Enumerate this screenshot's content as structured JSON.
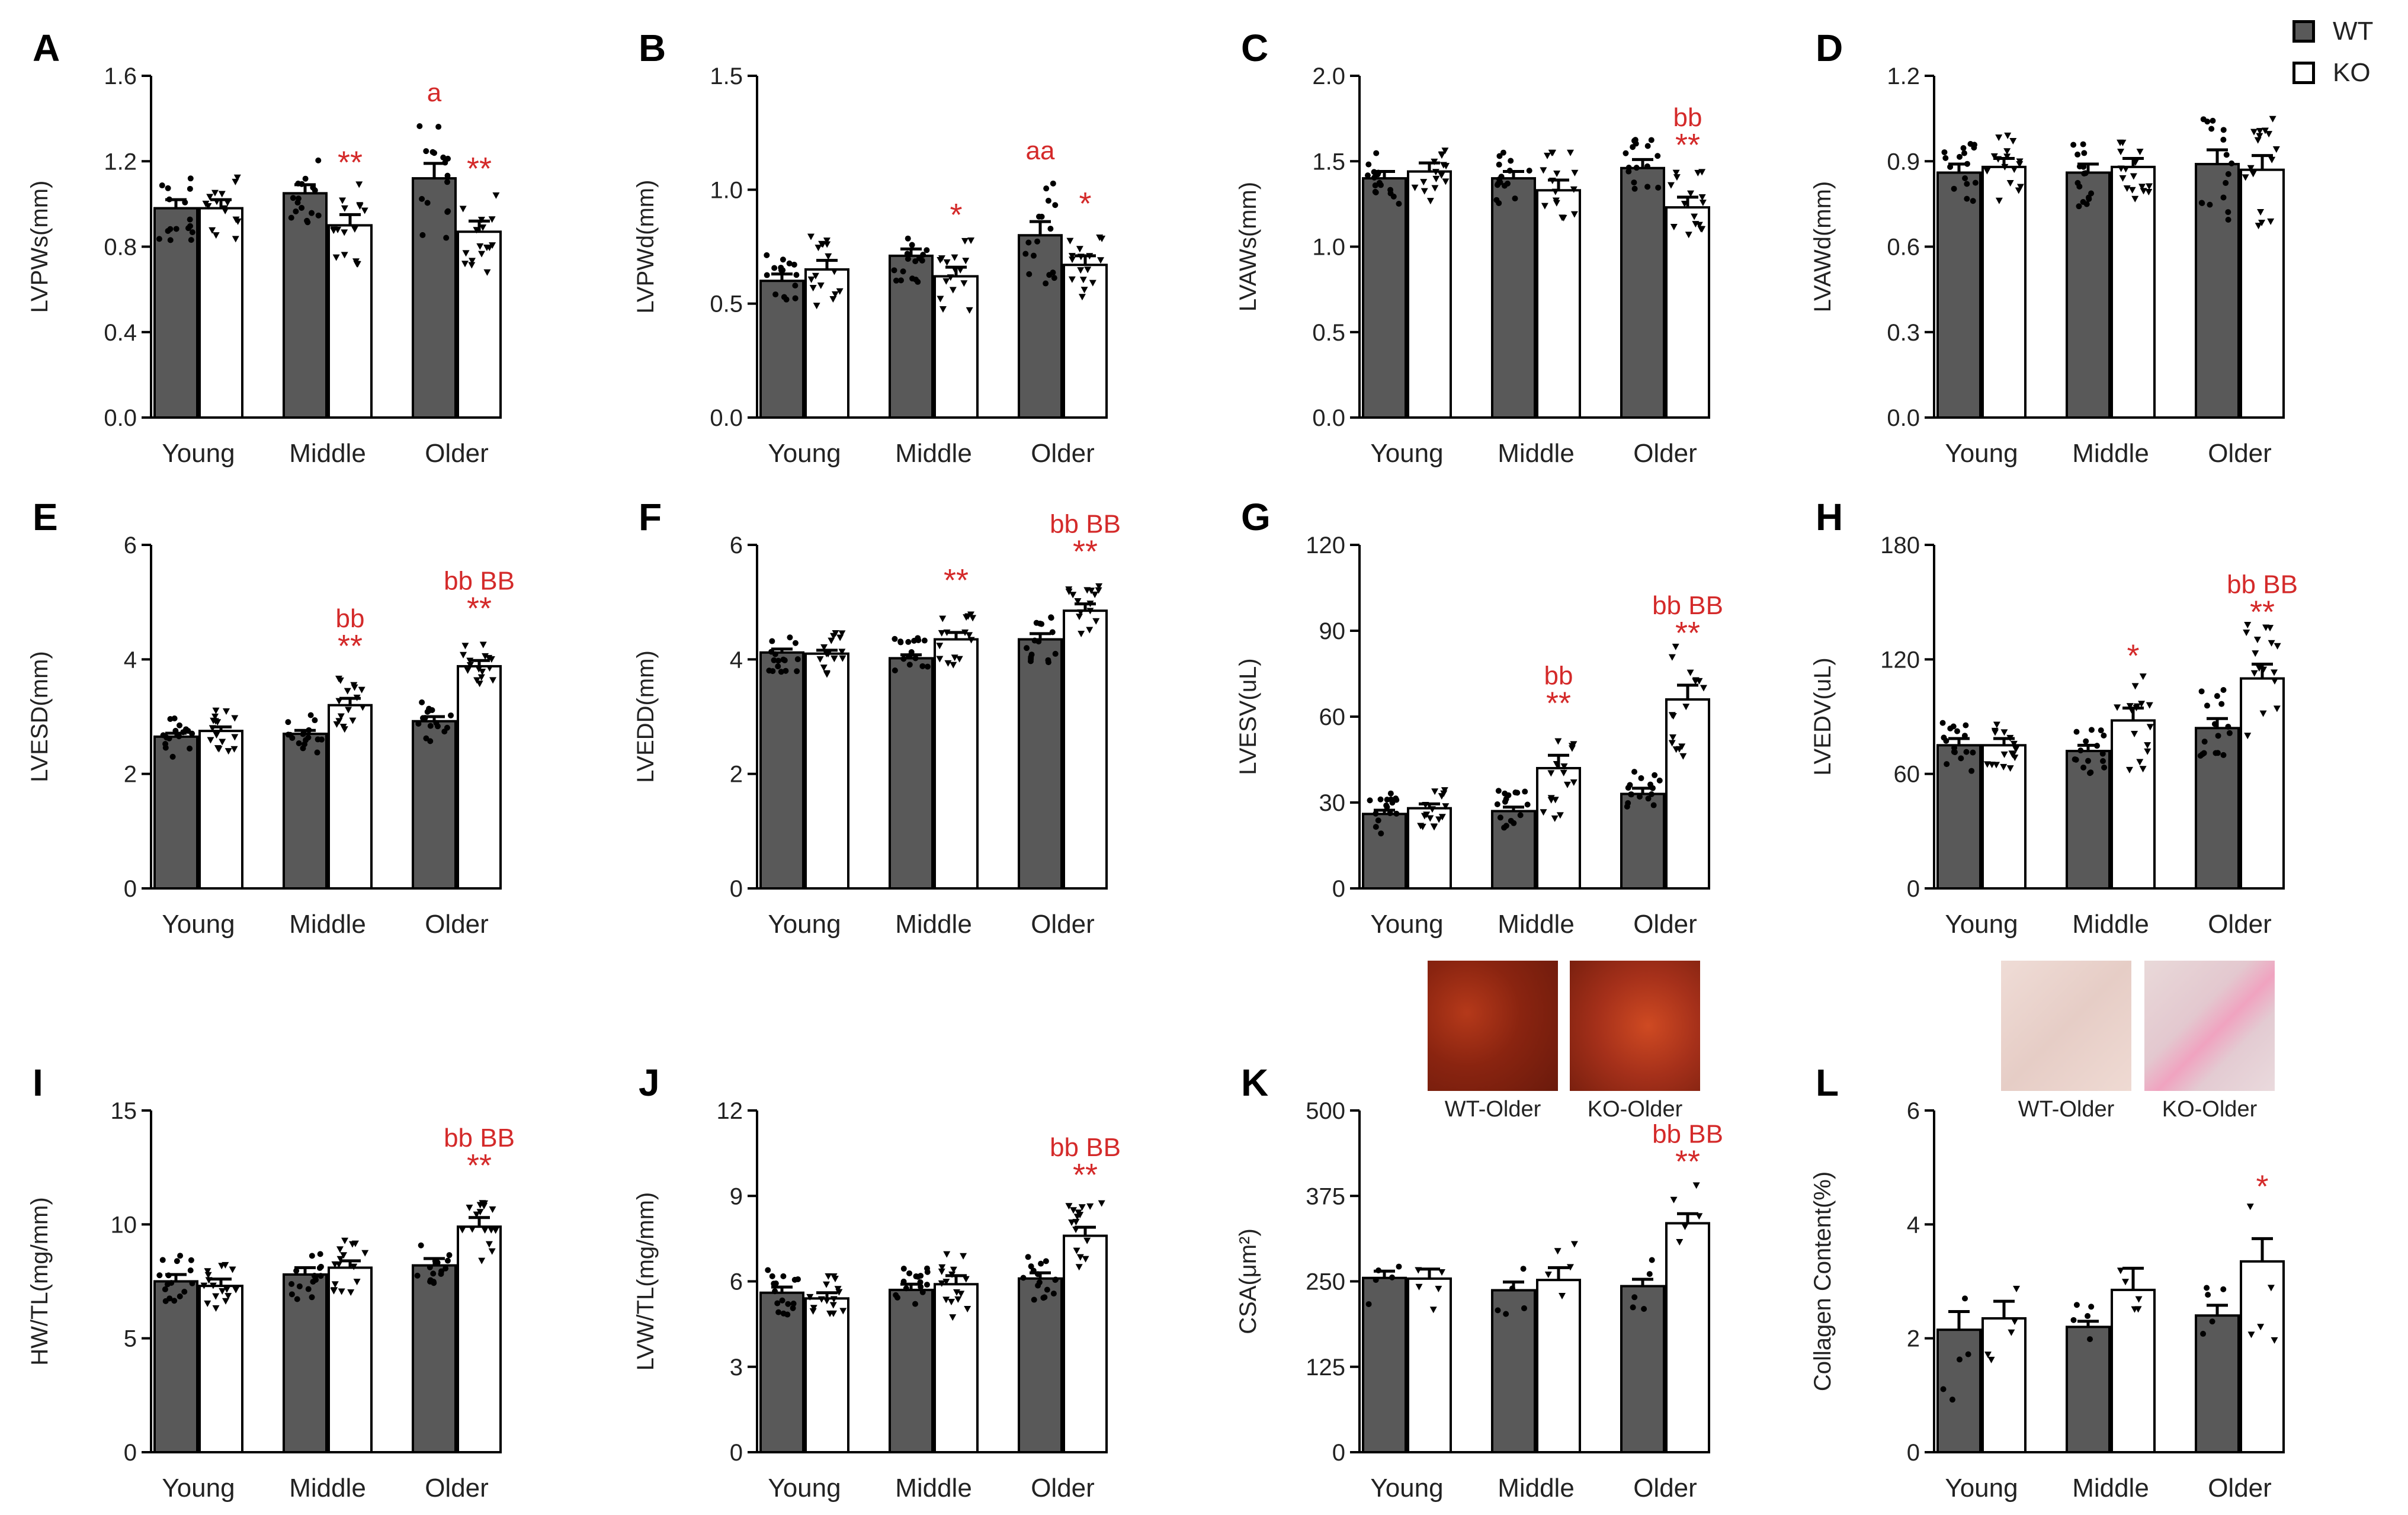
{
  "legend": [
    {
      "label": "WT",
      "color": "#595959"
    },
    {
      "label": "KO",
      "color": "#ffffff"
    }
  ],
  "colors": {
    "wt": "#595959",
    "ko": "#ffffff",
    "significance": "#d42a2a",
    "axis": "#000000"
  },
  "groups": [
    "Young",
    "Middle",
    "Older"
  ],
  "chart_data": [
    {
      "type": "bar",
      "panel": "A",
      "ylabel": "LVPWs(mm)",
      "ylim": [
        0,
        1.6
      ],
      "ticks": [
        "0.0",
        "0.4",
        "0.8",
        "1.2",
        "1.6"
      ],
      "categories": [
        "Young",
        "Middle",
        "Older"
      ],
      "series": [
        {
          "name": "WT",
          "values": [
            0.98,
            1.05,
            1.12
          ],
          "sem": [
            0.04,
            0.04,
            0.07
          ]
        },
        {
          "name": "KO",
          "values": [
            0.98,
            0.9,
            0.87
          ],
          "sem": [
            0.04,
            0.05,
            0.05
          ]
        }
      ],
      "sig": [
        {
          "group": 2,
          "series": 0,
          "line1": "a",
          "line2": ""
        },
        {
          "group": 1,
          "series": 1,
          "line1": "",
          "line2": "**"
        },
        {
          "group": 2,
          "series": 1,
          "line1": "",
          "line2": "**"
        }
      ]
    },
    {
      "type": "bar",
      "panel": "B",
      "ylabel": "LVPWd(mm)",
      "ylim": [
        0,
        1.5
      ],
      "ticks": [
        "0.0",
        "0.5",
        "1.0",
        "1.5"
      ],
      "categories": [
        "Young",
        "Middle",
        "Older"
      ],
      "series": [
        {
          "name": "WT",
          "values": [
            0.6,
            0.71,
            0.8
          ],
          "sem": [
            0.03,
            0.03,
            0.06
          ]
        },
        {
          "name": "KO",
          "values": [
            0.65,
            0.62,
            0.67
          ],
          "sem": [
            0.04,
            0.04,
            0.04
          ]
        }
      ],
      "sig": [
        {
          "group": 2,
          "series": 0,
          "line1": "aa",
          "line2": ""
        },
        {
          "group": 1,
          "series": 1,
          "line1": "",
          "line2": "*"
        },
        {
          "group": 2,
          "series": 1,
          "line1": "",
          "line2": "*"
        }
      ]
    },
    {
      "type": "bar",
      "panel": "C",
      "ylabel": "LVAWs(mm)",
      "ylim": [
        0,
        2.0
      ],
      "ticks": [
        "0.0",
        "0.5",
        "1.0",
        "1.5",
        "2.0"
      ],
      "categories": [
        "Young",
        "Middle",
        "Older"
      ],
      "series": [
        {
          "name": "WT",
          "values": [
            1.4,
            1.4,
            1.46
          ],
          "sem": [
            0.04,
            0.04,
            0.05
          ]
        },
        {
          "name": "KO",
          "values": [
            1.44,
            1.33,
            1.23
          ],
          "sem": [
            0.05,
            0.06,
            0.06
          ]
        }
      ],
      "sig": [
        {
          "group": 2,
          "series": 1,
          "line1": "bb",
          "line2": "**"
        }
      ]
    },
    {
      "type": "bar",
      "panel": "D",
      "ylabel": "LVAWd(mm)",
      "ylim": [
        0,
        1.2
      ],
      "ticks": [
        "0.0",
        "0.3",
        "0.6",
        "0.9",
        "1.2"
      ],
      "categories": [
        "Young",
        "Middle",
        "Older"
      ],
      "series": [
        {
          "name": "WT",
          "values": [
            0.86,
            0.86,
            0.89
          ],
          "sem": [
            0.03,
            0.03,
            0.05
          ]
        },
        {
          "name": "KO",
          "values": [
            0.88,
            0.88,
            0.87
          ],
          "sem": [
            0.03,
            0.03,
            0.05
          ]
        }
      ],
      "sig": []
    },
    {
      "type": "bar",
      "panel": "E",
      "ylabel": "LVESD(mm)",
      "ylim": [
        0,
        6
      ],
      "ticks": [
        "0",
        "2",
        "4",
        "6"
      ],
      "categories": [
        "Young",
        "Middle",
        "Older"
      ],
      "series": [
        {
          "name": "WT",
          "values": [
            2.65,
            2.7,
            2.92
          ],
          "sem": [
            0.06,
            0.06,
            0.08
          ]
        },
        {
          "name": "KO",
          "values": [
            2.75,
            3.2,
            3.88
          ],
          "sem": [
            0.07,
            0.12,
            0.1
          ]
        }
      ],
      "sig": [
        {
          "group": 1,
          "series": 1,
          "line1": "bb",
          "line2": "**"
        },
        {
          "group": 2,
          "series": 1,
          "line1": "bb BB",
          "line2": "**"
        }
      ]
    },
    {
      "type": "bar",
      "panel": "F",
      "ylabel": "LVEDD(mm)",
      "ylim": [
        0,
        6
      ],
      "ticks": [
        "0",
        "2",
        "4",
        "6"
      ],
      "categories": [
        "Young",
        "Middle",
        "Older"
      ],
      "series": [
        {
          "name": "WT",
          "values": [
            4.12,
            4.02,
            4.35
          ],
          "sem": [
            0.06,
            0.06,
            0.1
          ]
        },
        {
          "name": "KO",
          "values": [
            4.1,
            4.35,
            4.85
          ],
          "sem": [
            0.06,
            0.12,
            0.12
          ]
        }
      ],
      "sig": [
        {
          "group": 1,
          "series": 1,
          "line1": "",
          "line2": "**"
        },
        {
          "group": 2,
          "series": 1,
          "line1": "bb BB",
          "line2": "**"
        }
      ]
    },
    {
      "type": "bar",
      "panel": "G",
      "ylabel": "LVESV(uL)",
      "ylim": [
        0,
        120
      ],
      "ticks": [
        "0",
        "30",
        "60",
        "90",
        "120"
      ],
      "categories": [
        "Young",
        "Middle",
        "Older"
      ],
      "series": [
        {
          "name": "WT",
          "values": [
            26,
            27,
            33
          ],
          "sem": [
            1.3,
            1.4,
            2.0
          ]
        },
        {
          "name": "KO",
          "values": [
            28,
            42,
            66
          ],
          "sem": [
            1.5,
            4.5,
            5.0
          ]
        }
      ],
      "sig": [
        {
          "group": 1,
          "series": 1,
          "line1": "bb",
          "line2": "**"
        },
        {
          "group": 2,
          "series": 1,
          "line1": "bb BB",
          "line2": "**"
        }
      ]
    },
    {
      "type": "bar",
      "panel": "H",
      "ylabel": "LVEDV(uL)",
      "ylim": [
        0,
        180
      ],
      "ticks": [
        "0",
        "60",
        "120",
        "180"
      ],
      "categories": [
        "Young",
        "Middle",
        "Older"
      ],
      "series": [
        {
          "name": "WT",
          "values": [
            75,
            72,
            84
          ],
          "sem": [
            3.5,
            3.0,
            5.0
          ]
        },
        {
          "name": "KO",
          "values": [
            75,
            88,
            110
          ],
          "sem": [
            3.5,
            6.5,
            7.5
          ]
        }
      ],
      "sig": [
        {
          "group": 1,
          "series": 1,
          "line1": "",
          "line2": "*"
        },
        {
          "group": 2,
          "series": 1,
          "line1": "bb BB",
          "line2": "**"
        }
      ]
    },
    {
      "type": "bar",
      "panel": "I",
      "ylabel": "HW/TL(mg/mm)",
      "ylim": [
        0,
        15
      ],
      "ticks": [
        "0",
        "5",
        "10",
        "15"
      ],
      "categories": [
        "Young",
        "Middle",
        "Older"
      ],
      "series": [
        {
          "name": "WT",
          "values": [
            7.5,
            7.8,
            8.2
          ],
          "sem": [
            0.3,
            0.3,
            0.3
          ]
        },
        {
          "name": "KO",
          "values": [
            7.3,
            8.1,
            9.9
          ],
          "sem": [
            0.3,
            0.3,
            0.4
          ]
        }
      ],
      "sig": [
        {
          "group": 2,
          "series": 1,
          "line1": "bb BB",
          "line2": "**"
        }
      ]
    },
    {
      "type": "bar",
      "panel": "J",
      "ylabel": "LVW/TL(mg/mm)",
      "ylim": [
        0,
        12
      ],
      "ticks": [
        "0",
        "3",
        "6",
        "9",
        "12"
      ],
      "categories": [
        "Young",
        "Middle",
        "Older"
      ],
      "series": [
        {
          "name": "WT",
          "values": [
            5.6,
            5.7,
            6.1
          ],
          "sem": [
            0.2,
            0.2,
            0.2
          ]
        },
        {
          "name": "KO",
          "values": [
            5.4,
            5.9,
            7.6
          ],
          "sem": [
            0.2,
            0.3,
            0.3
          ]
        }
      ],
      "sig": [
        {
          "group": 2,
          "series": 1,
          "line1": "bb BB",
          "line2": "**"
        }
      ]
    },
    {
      "type": "bar",
      "panel": "K",
      "ylabel": "CSA(μm²)",
      "ylim": [
        0,
        500
      ],
      "ticks": [
        "0",
        "125",
        "250",
        "375",
        "500"
      ],
      "categories": [
        "Young",
        "Middle",
        "Older"
      ],
      "series": [
        {
          "name": "WT",
          "values": [
            255,
            237,
            243
          ],
          "sem": [
            10,
            12,
            10
          ]
        },
        {
          "name": "KO",
          "values": [
            254,
            252,
            335
          ],
          "sem": [
            14,
            18,
            14
          ]
        }
      ],
      "sig": [
        {
          "group": 2,
          "series": 1,
          "line1": "bb BB",
          "line2": "**"
        }
      ],
      "images": [
        {
          "caption": "WT-Older"
        },
        {
          "caption": "KO-Older"
        }
      ]
    },
    {
      "type": "bar",
      "panel": "L",
      "ylabel": "Collagen Content(%)",
      "ylim": [
        0,
        6
      ],
      "ticks": [
        "0",
        "2",
        "4",
        "6"
      ],
      "categories": [
        "Young",
        "Middle",
        "Older"
      ],
      "series": [
        {
          "name": "WT",
          "values": [
            2.15,
            2.2,
            2.4
          ],
          "sem": [
            0.32,
            0.1,
            0.18
          ]
        },
        {
          "name": "KO",
          "values": [
            2.35,
            2.85,
            3.35
          ],
          "sem": [
            0.3,
            0.38,
            0.4
          ]
        }
      ],
      "sig": [
        {
          "group": 2,
          "series": 1,
          "line1": "",
          "line2": "*"
        }
      ],
      "images": [
        {
          "caption": "WT-Older"
        },
        {
          "caption": "KO-Older"
        }
      ]
    }
  ]
}
